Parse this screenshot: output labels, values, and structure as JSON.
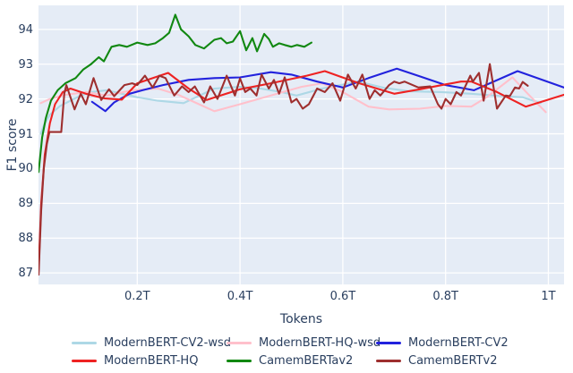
{
  "chart_data": {
    "type": "line",
    "title": "",
    "xlabel": "Tokens",
    "ylabel": "F1 score",
    "xlim": [
      0.0078,
      1.0305
    ],
    "ylim": [
      86.67,
      94.69
    ],
    "grid": true,
    "plot_bg_color": "#e5ecf6",
    "grid_color": "#ffffff",
    "text_color": "#2a3f5f",
    "legend_position": "bottom-horizontal-2-rows",
    "xticks": {
      "values": [
        0.2,
        0.4,
        0.6,
        0.8,
        1.0
      ],
      "labels": [
        "0.2T",
        "0.4T",
        "0.6T",
        "0.8T",
        "1T"
      ]
    },
    "yticks": {
      "values": [
        87,
        88,
        89,
        90,
        91,
        92,
        93,
        94
      ],
      "labels": [
        "87",
        "88",
        "89",
        "90",
        "91",
        "92",
        "93",
        "94"
      ]
    },
    "series": [
      {
        "name": "ModernBERT-CV2-wsd",
        "color": "#ADD8E6",
        "points": [
          [
            0.012,
            91.0
          ],
          [
            0.02,
            91.3
          ],
          [
            0.03,
            91.55
          ],
          [
            0.05,
            91.8
          ],
          [
            0.07,
            91.95
          ],
          [
            0.09,
            92.1
          ],
          [
            0.11,
            92.2
          ],
          [
            0.14,
            92.25
          ],
          [
            0.17,
            92.15
          ],
          [
            0.2,
            92.05
          ],
          [
            0.24,
            91.95
          ],
          [
            0.29,
            91.88
          ],
          [
            0.35,
            92.3
          ],
          [
            0.4,
            92.35
          ],
          [
            0.44,
            92.3
          ],
          [
            0.48,
            92.2
          ],
          [
            0.51,
            92.1
          ],
          [
            0.56,
            92.3
          ],
          [
            0.63,
            92.5
          ],
          [
            0.68,
            92.32
          ],
          [
            0.73,
            92.22
          ],
          [
            0.79,
            92.2
          ],
          [
            0.85,
            92.15
          ],
          [
            0.91,
            92.08
          ],
          [
            0.95,
            92.05
          ],
          [
            0.985,
            91.88
          ]
        ]
      },
      {
        "name": "ModernBERT-HQ-wsd",
        "color": "#FFC0CB",
        "points": [
          [
            0.012,
            91.88
          ],
          [
            0.03,
            92.0
          ],
          [
            0.06,
            92.12
          ],
          [
            0.1,
            92.2
          ],
          [
            0.14,
            92.1
          ],
          [
            0.19,
            92.25
          ],
          [
            0.24,
            92.3
          ],
          [
            0.28,
            92.12
          ],
          [
            0.32,
            91.85
          ],
          [
            0.35,
            91.65
          ],
          [
            0.4,
            91.85
          ],
          [
            0.46,
            92.1
          ],
          [
            0.52,
            92.35
          ],
          [
            0.56,
            92.45
          ],
          [
            0.6,
            92.2
          ],
          [
            0.65,
            91.78
          ],
          [
            0.69,
            91.7
          ],
          [
            0.75,
            91.72
          ],
          [
            0.8,
            91.8
          ],
          [
            0.85,
            91.78
          ],
          [
            0.88,
            92.05
          ],
          [
            0.93,
            92.62
          ],
          [
            0.96,
            92.15
          ],
          [
            0.995,
            91.62
          ]
        ]
      },
      {
        "name": "ModernBERT-CV2",
        "color": "#2222DD",
        "points": [
          [
            0.112,
            91.92
          ],
          [
            0.138,
            91.65
          ],
          [
            0.155,
            91.9
          ],
          [
            0.185,
            92.15
          ],
          [
            0.21,
            92.25
          ],
          [
            0.25,
            92.4
          ],
          [
            0.3,
            92.55
          ],
          [
            0.35,
            92.6
          ],
          [
            0.4,
            92.62
          ],
          [
            0.46,
            92.77
          ],
          [
            0.5,
            92.7
          ],
          [
            0.55,
            92.5
          ],
          [
            0.6,
            92.33
          ],
          [
            0.65,
            92.6
          ],
          [
            0.705,
            92.87
          ],
          [
            0.75,
            92.65
          ],
          [
            0.8,
            92.4
          ],
          [
            0.855,
            92.25
          ],
          [
            0.94,
            92.8
          ],
          [
            1.03,
            92.33
          ]
        ]
      },
      {
        "name": "ModernBERT-HQ",
        "color": "#EE2222",
        "points": [
          [
            0.008,
            87.1
          ],
          [
            0.013,
            89.0
          ],
          [
            0.02,
            90.4
          ],
          [
            0.03,
            91.3
          ],
          [
            0.04,
            91.85
          ],
          [
            0.055,
            92.2
          ],
          [
            0.07,
            92.3
          ],
          [
            0.1,
            92.15
          ],
          [
            0.135,
            92.02
          ],
          [
            0.17,
            91.98
          ],
          [
            0.2,
            92.45
          ],
          [
            0.24,
            92.65
          ],
          [
            0.26,
            92.75
          ],
          [
            0.3,
            92.3
          ],
          [
            0.335,
            91.97
          ],
          [
            0.4,
            92.28
          ],
          [
            0.46,
            92.45
          ],
          [
            0.53,
            92.67
          ],
          [
            0.565,
            92.8
          ],
          [
            0.63,
            92.46
          ],
          [
            0.7,
            92.15
          ],
          [
            0.75,
            92.28
          ],
          [
            0.8,
            92.42
          ],
          [
            0.83,
            92.5
          ],
          [
            0.85,
            92.5
          ],
          [
            0.9,
            92.2
          ],
          [
            0.956,
            91.78
          ],
          [
            1.03,
            92.12
          ]
        ]
      },
      {
        "name": "CamemBERTav2",
        "color": "#118811",
        "points": [
          [
            0.008,
            89.9
          ],
          [
            0.015,
            90.9
          ],
          [
            0.022,
            91.45
          ],
          [
            0.032,
            91.95
          ],
          [
            0.045,
            92.25
          ],
          [
            0.06,
            92.45
          ],
          [
            0.08,
            92.6
          ],
          [
            0.095,
            92.85
          ],
          [
            0.11,
            93.0
          ],
          [
            0.125,
            93.2
          ],
          [
            0.135,
            93.08
          ],
          [
            0.15,
            93.5
          ],
          [
            0.165,
            93.55
          ],
          [
            0.18,
            93.5
          ],
          [
            0.2,
            93.62
          ],
          [
            0.22,
            93.55
          ],
          [
            0.235,
            93.6
          ],
          [
            0.25,
            93.75
          ],
          [
            0.262,
            93.9
          ],
          [
            0.274,
            94.42
          ],
          [
            0.285,
            94.0
          ],
          [
            0.3,
            93.8
          ],
          [
            0.313,
            93.55
          ],
          [
            0.33,
            93.45
          ],
          [
            0.35,
            93.7
          ],
          [
            0.363,
            93.75
          ],
          [
            0.374,
            93.6
          ],
          [
            0.386,
            93.65
          ],
          [
            0.4,
            93.95
          ],
          [
            0.412,
            93.4
          ],
          [
            0.424,
            93.75
          ],
          [
            0.433,
            93.37
          ],
          [
            0.447,
            93.87
          ],
          [
            0.456,
            93.72
          ],
          [
            0.464,
            93.5
          ],
          [
            0.476,
            93.6
          ],
          [
            0.487,
            93.55
          ],
          [
            0.5,
            93.5
          ],
          [
            0.511,
            93.55
          ],
          [
            0.525,
            93.5
          ],
          [
            0.539,
            93.62
          ]
        ]
      },
      {
        "name": "CamemBERTv2",
        "color": "#9E2F2F",
        "points": [
          [
            0.008,
            86.95
          ],
          [
            0.013,
            88.8
          ],
          [
            0.018,
            90.0
          ],
          [
            0.024,
            90.7
          ],
          [
            0.029,
            91.05
          ],
          [
            0.052,
            91.05
          ],
          [
            0.058,
            92.15
          ],
          [
            0.062,
            92.4
          ],
          [
            0.078,
            91.7
          ],
          [
            0.09,
            92.15
          ],
          [
            0.1,
            91.85
          ],
          [
            0.115,
            92.6
          ],
          [
            0.13,
            91.97
          ],
          [
            0.145,
            92.28
          ],
          [
            0.155,
            92.08
          ],
          [
            0.175,
            92.4
          ],
          [
            0.19,
            92.45
          ],
          [
            0.2,
            92.4
          ],
          [
            0.215,
            92.67
          ],
          [
            0.23,
            92.33
          ],
          [
            0.243,
            92.67
          ],
          [
            0.255,
            92.6
          ],
          [
            0.272,
            92.1
          ],
          [
            0.287,
            92.36
          ],
          [
            0.3,
            92.2
          ],
          [
            0.312,
            92.36
          ],
          [
            0.33,
            91.9
          ],
          [
            0.342,
            92.36
          ],
          [
            0.356,
            92.0
          ],
          [
            0.374,
            92.67
          ],
          [
            0.39,
            92.1
          ],
          [
            0.4,
            92.59
          ],
          [
            0.41,
            92.2
          ],
          [
            0.42,
            92.3
          ],
          [
            0.432,
            92.1
          ],
          [
            0.442,
            92.7
          ],
          [
            0.456,
            92.3
          ],
          [
            0.466,
            92.55
          ],
          [
            0.476,
            92.15
          ],
          [
            0.487,
            92.62
          ],
          [
            0.5,
            91.9
          ],
          [
            0.51,
            92.0
          ],
          [
            0.522,
            91.72
          ],
          [
            0.534,
            91.85
          ],
          [
            0.55,
            92.3
          ],
          [
            0.565,
            92.2
          ],
          [
            0.58,
            92.45
          ],
          [
            0.595,
            91.95
          ],
          [
            0.61,
            92.7
          ],
          [
            0.625,
            92.3
          ],
          [
            0.638,
            92.7
          ],
          [
            0.652,
            92.0
          ],
          [
            0.662,
            92.25
          ],
          [
            0.673,
            92.1
          ],
          [
            0.69,
            92.4
          ],
          [
            0.7,
            92.5
          ],
          [
            0.71,
            92.45
          ],
          [
            0.72,
            92.5
          ],
          [
            0.747,
            92.33
          ],
          [
            0.77,
            92.36
          ],
          [
            0.785,
            91.85
          ],
          [
            0.792,
            91.72
          ],
          [
            0.8,
            92.0
          ],
          [
            0.81,
            91.85
          ],
          [
            0.821,
            92.2
          ],
          [
            0.83,
            92.1
          ],
          [
            0.848,
            92.67
          ],
          [
            0.853,
            92.5
          ],
          [
            0.865,
            92.75
          ],
          [
            0.874,
            91.95
          ],
          [
            0.886,
            93.0
          ],
          [
            0.9,
            91.72
          ],
          [
            0.917,
            92.1
          ],
          [
            0.925,
            92.08
          ],
          [
            0.935,
            92.33
          ],
          [
            0.943,
            92.3
          ],
          [
            0.95,
            92.49
          ],
          [
            0.96,
            92.38
          ]
        ]
      }
    ]
  }
}
